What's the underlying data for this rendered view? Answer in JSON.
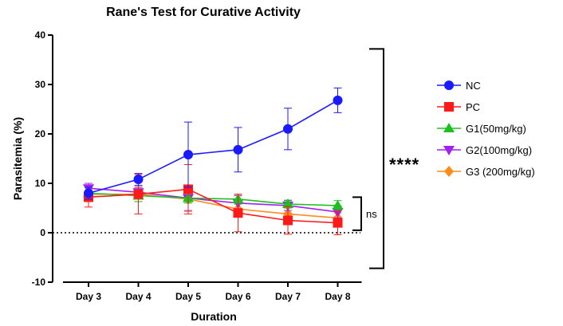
{
  "chart_data": {
    "type": "line",
    "title": "Rane's Test for Curative Activity",
    "xlabel": "Duration",
    "ylabel": "Parasitemia (%)",
    "categories": [
      "Day 3",
      "Day 4",
      "Day 5",
      "Day 6",
      "Day 7",
      "Day 8"
    ],
    "ylim": [
      -10,
      40
    ],
    "yticks": [
      -10,
      0,
      10,
      20,
      30,
      40
    ],
    "reference_line": 0,
    "legend_position": "right",
    "series": [
      {
        "name": "NC",
        "color": "#1a1aff",
        "marker": "circle",
        "values": [
          8.0,
          10.8,
          15.8,
          16.8,
          21.0,
          26.8
        ],
        "errors": [
          1.2,
          1.2,
          6.6,
          4.5,
          4.2,
          2.5
        ]
      },
      {
        "name": "PC",
        "color": "#ff1a1a",
        "marker": "square",
        "values": [
          7.2,
          7.8,
          8.8,
          4.0,
          2.5,
          2.0
        ],
        "errors": [
          2.0,
          4.0,
          5.0,
          3.8,
          2.8,
          2.4
        ]
      },
      {
        "name": "G1(50mg/kg)",
        "color": "#1ec01e",
        "marker": "triangle-up",
        "values": [
          8.0,
          7.5,
          7.0,
          6.8,
          5.8,
          5.5
        ],
        "errors": [
          1.2,
          1.2,
          1.0,
          1.0,
          0.8,
          1.0
        ]
      },
      {
        "name": "G2(100mg/kg)",
        "color": "#a020f0",
        "marker": "triangle-down",
        "values": [
          9.0,
          8.2,
          7.0,
          6.0,
          5.5,
          4.2
        ],
        "errors": [
          1.0,
          1.0,
          2.5,
          1.5,
          1.0,
          1.2
        ]
      },
      {
        "name": "G3 (200mg/kg)",
        "color": "#ff8c1a",
        "marker": "diamond",
        "values": [
          7.8,
          7.8,
          6.8,
          4.8,
          3.8,
          3.0
        ],
        "errors": [
          1.5,
          1.5,
          2.5,
          1.5,
          1.5,
          1.0
        ]
      }
    ],
    "annotations": [
      {
        "text": "****",
        "y_range": [
          -7.2,
          37.2
        ]
      },
      {
        "text": "ns",
        "y_range": [
          0.5,
          7.2
        ]
      }
    ]
  }
}
